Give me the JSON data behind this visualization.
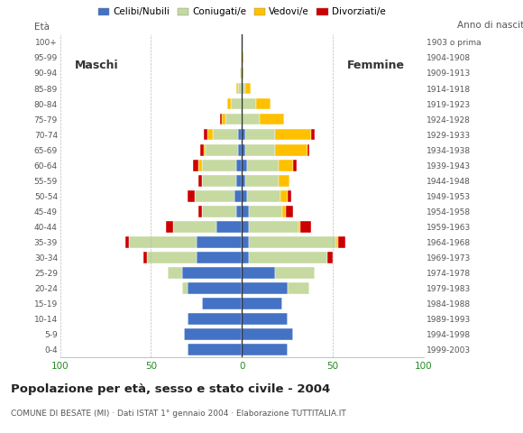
{
  "age_groups": [
    "0-4",
    "5-9",
    "10-14",
    "15-19",
    "20-24",
    "25-29",
    "30-34",
    "35-39",
    "40-44",
    "45-49",
    "50-54",
    "55-59",
    "60-64",
    "65-69",
    "70-74",
    "75-79",
    "80-84",
    "85-89",
    "90-94",
    "95-99",
    "100+"
  ],
  "birth_years": [
    "1999-2003",
    "1994-1998",
    "1989-1993",
    "1984-1988",
    "1979-1983",
    "1974-1978",
    "1969-1973",
    "1964-1968",
    "1959-1963",
    "1954-1958",
    "1949-1953",
    "1944-1948",
    "1939-1943",
    "1934-1938",
    "1929-1933",
    "1924-1928",
    "1919-1923",
    "1914-1918",
    "1909-1913",
    "1904-1908",
    "1903 o prima"
  ],
  "males": {
    "celibi": [
      30,
      32,
      30,
      22,
      30,
      33,
      25,
      25,
      14,
      3,
      4,
      3,
      3,
      2,
      2,
      0,
      0,
      0,
      0,
      0,
      0
    ],
    "coniugati": [
      0,
      0,
      0,
      0,
      3,
      8,
      27,
      37,
      24,
      19,
      22,
      19,
      19,
      18,
      14,
      9,
      6,
      2,
      1,
      0,
      0
    ],
    "vedovi": [
      0,
      0,
      0,
      0,
      0,
      0,
      0,
      0,
      0,
      0,
      0,
      0,
      2,
      1,
      3,
      2,
      2,
      1,
      0,
      0,
      0
    ],
    "divorziati": [
      0,
      0,
      0,
      0,
      0,
      0,
      2,
      2,
      4,
      2,
      4,
      2,
      3,
      2,
      2,
      1,
      0,
      0,
      0,
      0,
      0
    ]
  },
  "females": {
    "nubili": [
      25,
      28,
      25,
      22,
      25,
      18,
      4,
      4,
      4,
      4,
      3,
      2,
      3,
      2,
      2,
      0,
      0,
      0,
      0,
      0,
      0
    ],
    "coniugate": [
      0,
      0,
      0,
      0,
      12,
      22,
      43,
      48,
      27,
      18,
      18,
      18,
      17,
      16,
      16,
      10,
      8,
      2,
      0,
      0,
      0
    ],
    "vedove": [
      0,
      0,
      0,
      0,
      0,
      0,
      0,
      1,
      1,
      2,
      4,
      6,
      8,
      18,
      20,
      13,
      8,
      3,
      1,
      1,
      0
    ],
    "divorziate": [
      0,
      0,
      0,
      0,
      0,
      0,
      3,
      4,
      6,
      4,
      2,
      0,
      2,
      1,
      2,
      0,
      0,
      0,
      0,
      0,
      0
    ]
  },
  "colors": {
    "celibi": "#4472c4",
    "coniugati": "#c5d9a0",
    "vedovi": "#ffc000",
    "divorziati": "#cc0000"
  },
  "title": "Popolazione per età, sesso e stato civile - 2004",
  "subtitle": "COMUNE DI BESATE (MI) · Dati ISTAT 1° gennaio 2004 · Elaborazione TUTTITALIA.IT",
  "legend_labels": [
    "Celibi/Nubili",
    "Coniugati/e",
    "Vedovi/e",
    "Divorziati/e"
  ],
  "xlabel_left": "Maschi",
  "xlabel_right": "Femmine",
  "ylabel": "Età",
  "ylabel_right": "Anno di nascita",
  "xlim": 100,
  "background_color": "#ffffff",
  "grid_color": "#bbbbbb",
  "bar_height": 0.75
}
